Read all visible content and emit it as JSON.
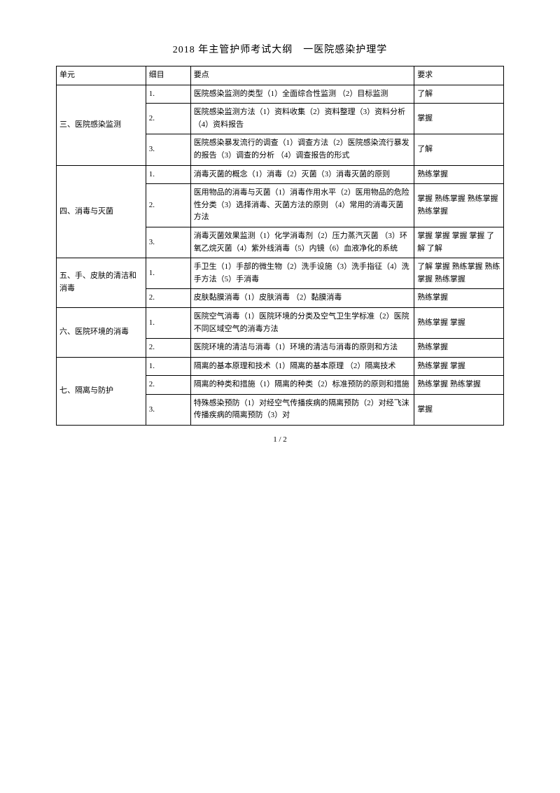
{
  "title": "2018 年主管护师考试大纲　一医院感染护理学",
  "page_number": "1 / 2",
  "header": {
    "unit": "单元",
    "detail": "细目",
    "point": "要点",
    "req": "要求"
  },
  "rows": [
    {
      "unit": "三、医院感染监测",
      "rowspan": 3,
      "detail": "1.",
      "point": "医院感染监测的类型（1）全面综合性监测 （2）目标监测",
      "req": "了解"
    },
    {
      "detail": "2.",
      "point": "医院感染监测方法（1）资料收集（2）资料整理（3）资料分析（4）资料报告",
      "req": "掌握"
    },
    {
      "detail": "3.",
      "point": "医院感染暴发流行的调查（1）调查方法（2）医院感染流行暴发的报告（3）调查的分析 （4）调查报告的形式",
      "req": "了解"
    },
    {
      "unit": "四、消毒与灭菌",
      "rowspan": 3,
      "detail": "1.",
      "point": "消毒灭菌的概念（1）消毒（2）灭菌（3）消毒灭菌的原则",
      "req": "熟练掌握"
    },
    {
      "detail": "2.",
      "point": "医用物品的消毒与灭菌（1）消毒作用水平（2）医用物品的危险性分类（3）选择消毒、灭菌方法的原则 （4）常用的消毒灭菌方法",
      "req": "掌握 熟练掌握 熟练掌握 熟练掌握"
    },
    {
      "detail": "3.",
      "point": "消毒灭菌效果监测（1）化学消毒剂（2）压力蒸汽灭菌 （3）环氧乙烷灭菌（4）紫外线消毒（5）内镜（6）血液净化的系统",
      "req": "掌握 掌握 掌握 掌握 了解 了解"
    },
    {
      "unit": "五、手、皮肤的清洁和消毒",
      "rowspan": 2,
      "detail": "1.",
      "point": "手卫生（1）手部的微生物（2）洗手设施（3）洗手指征（4）洗手方法（5）手消毒",
      "req": "了解 掌握 熟练掌握 熟练掌握 熟练掌握"
    },
    {
      "detail": "2.",
      "point": "皮肤黏膜消毒（1）皮肤消毒 （2）黏膜消毒",
      "req": "熟练掌握"
    },
    {
      "unit": "六、医院环境的消毒",
      "rowspan": 2,
      "detail": "1.",
      "point": "医院空气消毒（1）医院环境的分类及空气卫生学标准（2）医院不同区域空气的消毒方法",
      "req": "熟练掌握 掌握"
    },
    {
      "detail": "2.",
      "point": "医院环境的清洁与消毒（1）环境的清洁与消毒的原则和方法",
      "req": "熟练掌握"
    },
    {
      "unit": "七、隔离与防护",
      "rowspan": 3,
      "detail": "1.",
      "point": "隔离的基本原理和技术（1）隔离的基本原理 （2）隔离技术",
      "req": "熟练掌握 掌握"
    },
    {
      "detail": "2.",
      "point": "隔离的种类和措施（1）隔离的种类（2）标准预防的原则和措施",
      "req": "熟练掌握 熟练掌握"
    },
    {
      "detail": "3.",
      "point": "特殊感染预防（1）对经空气传播疾病的隔离预防（2）对经飞沫传播疾病的隔离预防（3）对",
      "req": "掌握"
    }
  ]
}
